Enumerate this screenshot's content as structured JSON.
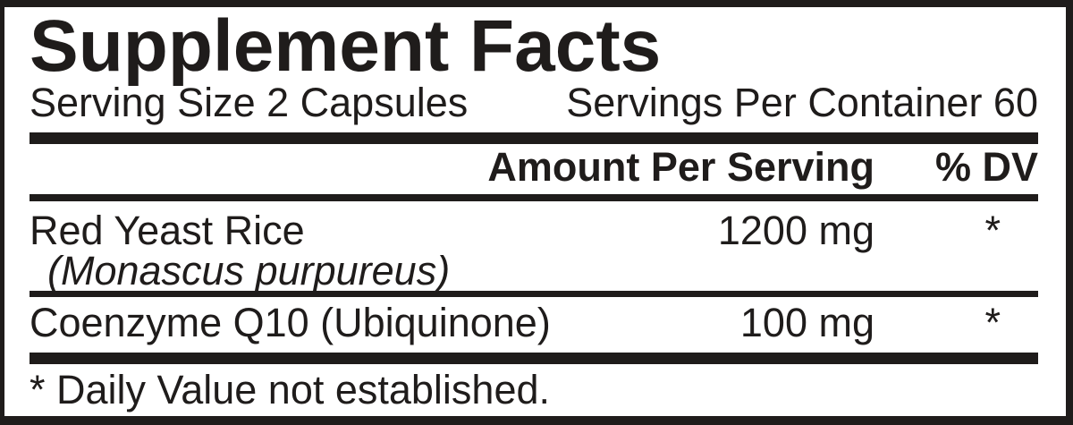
{
  "panel": {
    "title": "Supplement Facts",
    "serving_line": {
      "serving_size": "Serving Size 2 Capsules",
      "servings_per_container": "Servings Per Container 60"
    },
    "columns": {
      "amount": "Amount Per Serving",
      "dv": "% DV"
    },
    "rows": [
      {
        "name": "Red Yeast Rice",
        "botanical": "(Monascus purpureus)",
        "amount": "1200 mg",
        "dv": "*"
      },
      {
        "name": "Coenzyme Q10 (Ubiquinone)",
        "amount": "100 mg",
        "dv": "*"
      }
    ],
    "footnote": "* Daily Value not established.",
    "colors": {
      "ink": "#1f1c1b",
      "background": "#ffffff"
    }
  }
}
